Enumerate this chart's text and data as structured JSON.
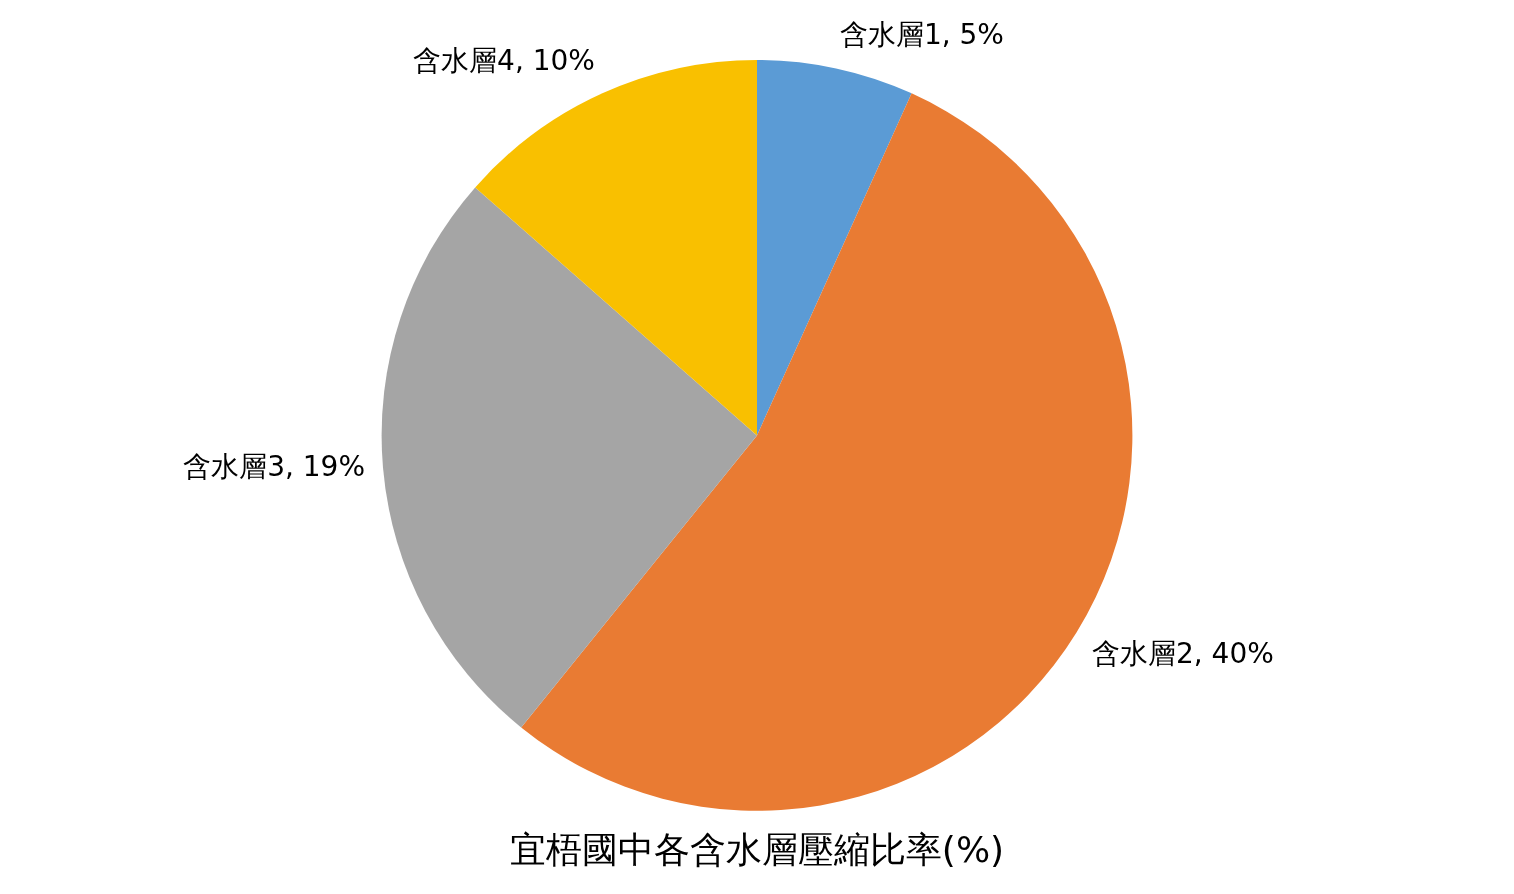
{
  "chart_data": {
    "type": "pie",
    "title": "宜梧國中各含水層壓縮比率(%)",
    "categories": [
      "含水層1",
      "含水層2",
      "含水層3",
      "含水層4"
    ],
    "values": [
      5,
      40,
      19,
      10
    ],
    "value_labels": [
      "5%",
      "40%",
      "19%",
      "10%"
    ],
    "colors": [
      "#5b9bd5",
      "#e97b33",
      "#a5a5a5",
      "#f9c000"
    ]
  }
}
